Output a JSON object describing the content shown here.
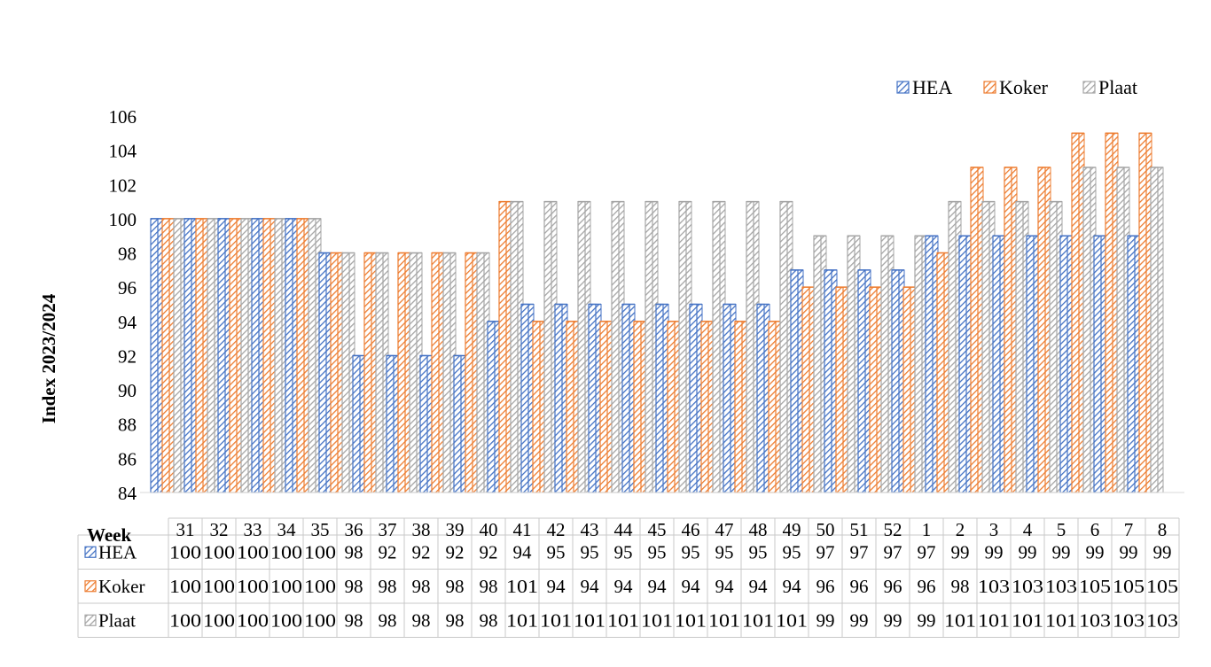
{
  "chart_data": {
    "type": "bar",
    "ylabel": "Index 2023/2024",
    "xlabel": "Week",
    "ylim": [
      84,
      106
    ],
    "ytick_step": 2,
    "grid": false,
    "legend_position": "top-right",
    "data_table": true,
    "categories": [
      "31",
      "32",
      "33",
      "34",
      "35",
      "36",
      "37",
      "38",
      "39",
      "40",
      "41",
      "42",
      "43",
      "44",
      "45",
      "46",
      "47",
      "48",
      "49",
      "50",
      "51",
      "52",
      "1",
      "2",
      "3",
      "4",
      "5",
      "6",
      "7",
      "8"
    ],
    "series": [
      {
        "name": "HEA",
        "color": "#4472C4",
        "values": [
          100,
          100,
          100,
          100,
          100,
          98,
          92,
          92,
          92,
          92,
          94,
          95,
          95,
          95,
          95,
          95,
          95,
          95,
          95,
          97,
          97,
          97,
          97,
          99,
          99,
          99,
          99,
          99,
          99,
          99
        ]
      },
      {
        "name": "Koker",
        "color": "#ED7D31",
        "values": [
          100,
          100,
          100,
          100,
          100,
          98,
          98,
          98,
          98,
          98,
          101,
          94,
          94,
          94,
          94,
          94,
          94,
          94,
          94,
          96,
          96,
          96,
          96,
          98,
          103,
          103,
          103,
          105,
          105,
          105
        ]
      },
      {
        "name": "Plaat",
        "color": "#A5A5A5",
        "values": [
          100,
          100,
          100,
          100,
          100,
          98,
          98,
          98,
          98,
          98,
          101,
          101,
          101,
          101,
          101,
          101,
          101,
          101,
          101,
          99,
          99,
          99,
          99,
          101,
          101,
          101,
          101,
          103,
          103,
          103
        ]
      }
    ]
  }
}
